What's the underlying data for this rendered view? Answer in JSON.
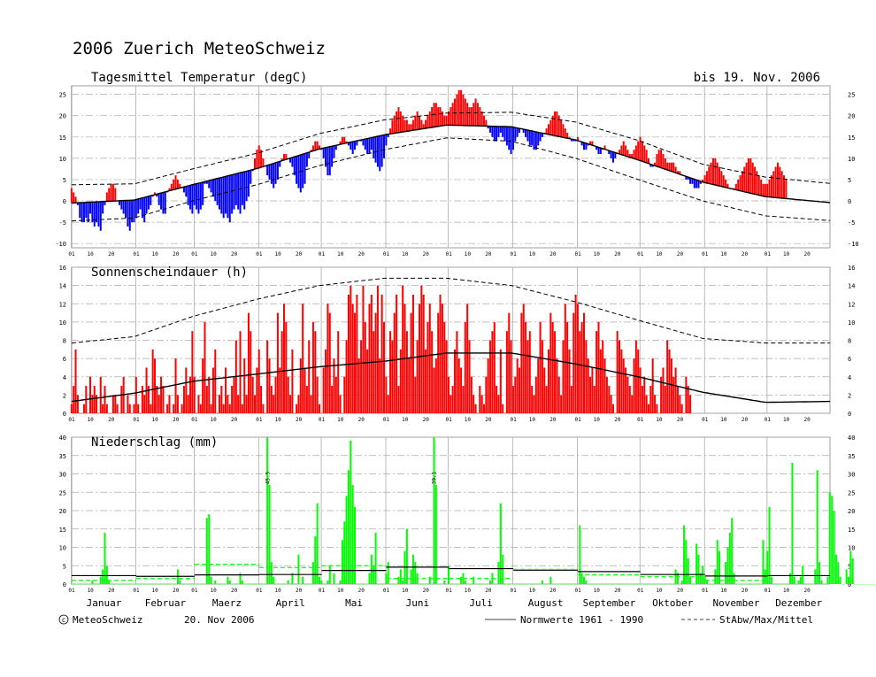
{
  "header": {
    "title": "2006  Zuerich MeteoSchweiz",
    "date_range": "bis 19. Nov. 2006"
  },
  "footer": {
    "copyright_symbol": "c",
    "copyright": "MeteoSchweiz",
    "date": "20. Nov 2006",
    "legend_normal": "Normwerte 1961 - 1990",
    "legend_dashed": "StAbw/Max/Mittel"
  },
  "month_labels": [
    "Januar",
    "Februar",
    "Maerz",
    "April",
    "Mai",
    "Juni",
    "Juli",
    "August",
    "September",
    "Oktober",
    "November",
    "Dezember"
  ],
  "day_tick_labels": [
    "01",
    "10",
    "20"
  ],
  "colors": {
    "above_normal": "#ff0000",
    "below_normal": "#0000ff",
    "sunshine": "#ff0000",
    "precip": "#00ff00",
    "grid": "#aaaaaa",
    "normal_line": "#000000"
  },
  "chart_data": [
    {
      "type": "bar",
      "title": "Tagesmittel Temperatur (degC)",
      "ylim": [
        -11,
        27
      ],
      "yticks": [
        -10,
        -5,
        0,
        5,
        10,
        15,
        20,
        25
      ],
      "x_unit": "day of year",
      "normal_mean": {
        "x": [
          1,
          31,
          59,
          90,
          120,
          151,
          181,
          212,
          243,
          273,
          304,
          334,
          365
        ],
        "y": [
          -0.5,
          0.2,
          3.8,
          7.6,
          12.2,
          15.5,
          17.8,
          17.4,
          14.3,
          9.6,
          4.4,
          1.0,
          -0.4
        ]
      },
      "upper_band": {
        "x": [
          1,
          31,
          59,
          90,
          120,
          151,
          181,
          212,
          243,
          273,
          304,
          334,
          365
        ],
        "y": [
          3.8,
          4.0,
          7.5,
          11.2,
          15.8,
          19.0,
          20.6,
          20.8,
          18.5,
          14.2,
          8.6,
          5.6,
          4.1
        ]
      },
      "lower_band": {
        "x": [
          1,
          31,
          59,
          90,
          120,
          151,
          181,
          212,
          243,
          273,
          304,
          334,
          365
        ],
        "y": [
          -4.7,
          -4.0,
          0.0,
          3.8,
          8.3,
          12.0,
          14.8,
          14.0,
          10.0,
          5.0,
          0.0,
          -3.5,
          -4.6
        ]
      },
      "daily_values": [
        3,
        2,
        1,
        -1,
        -4,
        -5,
        -5,
        -4,
        -5,
        -3,
        -5,
        -6,
        -5,
        -6,
        -7,
        -3,
        -1,
        2,
        3,
        4,
        4,
        3,
        0,
        -1,
        -2,
        -3,
        -4,
        -6,
        -7,
        -5,
        -5,
        -4,
        -3,
        -2,
        -4,
        -5,
        -3,
        -2,
        -1,
        1,
        2,
        1,
        -1,
        -2,
        -3,
        -3,
        2,
        3,
        4,
        5,
        6,
        5,
        4,
        3,
        2,
        1,
        -1,
        -2,
        -3,
        -1,
        -2,
        -3,
        -2,
        -1,
        4,
        4,
        3,
        2,
        1,
        0,
        -1,
        -2,
        -3,
        -4,
        -3,
        -4,
        -5,
        -3,
        -2,
        -1,
        -2,
        -3,
        -1,
        -2,
        0,
        1,
        4,
        7,
        10,
        12,
        13,
        12,
        10,
        8,
        6,
        5,
        4,
        3,
        4,
        5,
        8,
        10,
        11,
        11,
        10,
        9,
        8,
        6,
        4,
        3,
        2,
        3,
        4,
        8,
        10,
        12,
        13,
        14,
        14,
        13,
        12,
        10,
        8,
        6,
        6,
        8,
        10,
        12,
        13,
        14,
        15,
        15,
        14,
        13,
        12,
        11,
        12,
        13,
        14,
        14,
        13,
        12,
        11,
        11,
        12,
        10,
        9,
        8,
        7,
        8,
        10,
        13,
        15,
        17,
        19,
        20,
        21,
        22,
        21,
        20,
        19,
        19,
        18,
        18,
        19,
        20,
        21,
        20,
        19,
        18,
        19,
        20,
        21,
        22,
        23,
        23,
        22,
        22,
        21,
        20,
        20,
        21,
        22,
        23,
        24,
        25,
        26,
        26,
        25,
        24,
        23,
        22,
        22,
        23,
        24,
        23,
        22,
        21,
        20,
        19,
        17,
        16,
        15,
        14,
        14,
        15,
        16,
        15,
        14,
        13,
        12,
        11,
        12,
        14,
        15,
        16,
        17,
        16,
        15,
        14,
        13,
        13,
        12,
        12,
        13,
        14,
        15,
        16,
        17,
        18,
        19,
        20,
        21,
        21,
        20,
        19,
        18,
        17,
        16,
        15,
        14,
        14,
        14,
        15,
        14,
        13,
        12,
        12,
        13,
        14,
        14,
        13,
        12,
        11,
        11,
        12,
        13,
        12,
        11,
        10,
        9,
        10,
        11,
        12,
        13,
        14,
        13,
        12,
        11,
        11,
        12,
        13,
        14,
        15,
        14,
        13,
        12,
        10,
        8,
        8,
        9,
        11,
        12,
        12,
        11,
        10,
        9,
        9,
        9,
        9,
        8,
        7,
        7,
        6,
        6,
        5,
        5,
        4,
        4,
        3,
        3,
        3,
        4,
        5,
        6,
        7,
        8,
        9,
        10,
        10,
        9,
        8,
        7,
        6,
        5,
        4,
        3,
        3,
        3,
        4,
        5,
        6,
        7,
        8,
        9,
        10,
        10,
        9,
        8,
        7,
        6,
        5,
        4,
        4,
        4,
        5,
        6,
        7,
        8,
        9,
        8,
        7,
        6,
        5
      ]
    },
    {
      "type": "bar",
      "title": "Sonnenscheindauer (h)",
      "ylim": [
        0,
        16
      ],
      "yticks": [
        0,
        2,
        4,
        6,
        8,
        10,
        12,
        14,
        16
      ],
      "x_unit": "day of year",
      "normal_mean": {
        "x": [
          1,
          31,
          59,
          90,
          120,
          151,
          181,
          212,
          243,
          273,
          304,
          334,
          365
        ],
        "y": [
          1.3,
          2.2,
          3.5,
          4.3,
          5.1,
          5.7,
          6.6,
          6.6,
          5.4,
          4.0,
          2.3,
          1.2,
          1.3
        ]
      },
      "max_line": {
        "x": [
          1,
          31,
          59,
          90,
          120,
          151,
          181,
          212,
          243,
          273,
          304,
          334,
          365
        ],
        "y": [
          7.7,
          8.4,
          10.6,
          12.5,
          14.0,
          14.8,
          14.8,
          14.0,
          12.2,
          10.2,
          8.2,
          7.7,
          7.7
        ]
      },
      "daily_values": [
        1,
        3,
        7,
        2,
        0,
        0,
        1,
        3,
        0,
        4,
        2,
        3,
        2,
        0,
        4,
        1,
        3,
        1,
        0,
        0,
        2,
        2,
        1,
        0,
        3,
        4,
        0,
        2,
        1,
        0,
        1,
        4,
        1,
        0,
        3,
        2,
        5,
        3,
        1,
        7,
        6,
        3,
        2,
        4,
        3,
        0,
        1,
        2,
        0,
        1,
        6,
        2,
        0,
        1,
        3,
        5,
        2,
        4,
        9,
        4,
        0,
        2,
        1,
        6,
        10,
        3,
        4,
        1,
        5,
        7,
        0,
        2,
        3,
        1,
        5,
        2,
        1,
        3,
        4,
        8,
        2,
        9,
        1,
        6,
        2,
        11,
        9,
        4,
        2,
        5,
        7,
        3,
        1,
        0,
        8,
        6,
        3,
        2,
        4,
        11,
        5,
        9,
        12,
        10,
        4,
        2,
        7,
        0,
        1,
        2,
        6,
        12,
        5,
        3,
        8,
        2,
        10,
        9,
        4,
        1,
        0,
        5,
        7,
        12,
        11,
        3,
        6,
        4,
        9,
        2,
        0,
        4,
        8,
        13,
        14,
        12,
        11,
        13,
        6,
        8,
        14,
        10,
        7,
        12,
        13,
        9,
        11,
        14,
        6,
        13,
        10,
        4,
        2,
        9,
        8,
        11,
        13,
        3,
        7,
        14,
        12,
        9,
        6,
        11,
        13,
        4,
        8,
        12,
        14,
        13,
        7,
        10,
        12,
        9,
        5,
        6,
        11,
        13,
        12,
        10,
        8,
        4,
        2,
        3,
        7,
        9,
        6,
        5,
        3,
        10,
        12,
        8,
        4,
        2,
        1,
        0,
        3,
        2,
        1,
        4,
        6,
        8,
        9,
        10,
        3,
        2,
        7,
        1,
        0,
        9,
        11,
        8,
        3,
        4,
        6,
        5,
        11,
        12,
        10,
        8,
        9,
        3,
        2,
        4,
        6,
        10,
        8,
        5,
        3,
        7,
        11,
        10,
        9,
        6,
        4,
        2,
        8,
        12,
        10,
        7,
        3,
        11,
        13,
        12,
        9,
        10,
        11,
        8,
        6,
        4,
        5,
        3,
        9,
        10,
        7,
        8,
        6,
        4,
        3,
        2,
        1,
        0,
        9,
        8,
        7,
        6,
        5,
        4,
        3,
        2,
        6,
        8,
        7,
        5,
        3,
        4,
        2,
        1,
        3,
        6,
        2,
        1,
        0,
        4,
        5,
        3,
        8,
        7,
        6,
        4,
        5,
        3,
        2,
        1,
        0,
        4,
        3,
        2
      ]
    },
    {
      "type": "bar",
      "title": "Niederschlag (mm)",
      "ylim": [
        0,
        40
      ],
      "yticks": [
        0,
        5,
        10,
        15,
        20,
        25,
        30,
        35,
        40
      ],
      "x_unit": "day of year",
      "offscale_labels": [
        "45.5",
        "39.1",
        "42.3"
      ],
      "normal_month_mean": [
        2.3,
        2.1,
        2.5,
        2.6,
        3.7,
        4.6,
        4.2,
        3.8,
        3.4,
        2.6,
        2.2,
        2.3
      ],
      "month_mean_2006": [
        1.0,
        1.5,
        5.4,
        4.5,
        5.0,
        1.5,
        1.5,
        4.0,
        2.5,
        2.0,
        1.0,
        0
      ],
      "daily_values": [
        0,
        0,
        0,
        0,
        0,
        0,
        0,
        0,
        0,
        0,
        1,
        0,
        0,
        0,
        2,
        4,
        14,
        5,
        1,
        0,
        0,
        0,
        0,
        0,
        0,
        0,
        0,
        0,
        0,
        0,
        0,
        0,
        0,
        0,
        0,
        0,
        0,
        0,
        0,
        0,
        0,
        0,
        0,
        0,
        0,
        0,
        0,
        0,
        0,
        0,
        0,
        4,
        1,
        0,
        0,
        0,
        0,
        0,
        0,
        0,
        0,
        0,
        0,
        0,
        0,
        18,
        19,
        2,
        0,
        1,
        0,
        0,
        0,
        0,
        0,
        2,
        1,
        0,
        0,
        0,
        0,
        3,
        1,
        0,
        0,
        0,
        0,
        0,
        0,
        0,
        0,
        0,
        0,
        0,
        45.5,
        27,
        6,
        2,
        0,
        0,
        0,
        0,
        0,
        0,
        1,
        0,
        3,
        0,
        0,
        8,
        0,
        2,
        0,
        0,
        0,
        0,
        6,
        13,
        22,
        2,
        1,
        0,
        0,
        1,
        5,
        0,
        3,
        0,
        0,
        1,
        12,
        17,
        24,
        31,
        39.1,
        27,
        21,
        0,
        0,
        0,
        0,
        0,
        0,
        3,
        8,
        5,
        14,
        0,
        0,
        0,
        0,
        3,
        6,
        0,
        0,
        0,
        0,
        2,
        4,
        1,
        9,
        15,
        0,
        4,
        8,
        6,
        3,
        0,
        0,
        0,
        0,
        0,
        2,
        0,
        42.3,
        27,
        0,
        0,
        0,
        1,
        0,
        5,
        0,
        0,
        0,
        0,
        0,
        2,
        3,
        1,
        0,
        0,
        0,
        2,
        0,
        0,
        0,
        0,
        0,
        0,
        0,
        1,
        3,
        0,
        0,
        6,
        22,
        8,
        0,
        0,
        0,
        0,
        0,
        0,
        0,
        0,
        0,
        0,
        0,
        0,
        0,
        0,
        0,
        0,
        0,
        0,
        1,
        0,
        0,
        0,
        2,
        0,
        0,
        0,
        0,
        0,
        0,
        0,
        0,
        0,
        0,
        0,
        0,
        0,
        16,
        3,
        2,
        1,
        0,
        0,
        0,
        0,
        0,
        0,
        0,
        0,
        0,
        0,
        0,
        0,
        0,
        0,
        0,
        0,
        0,
        0,
        0,
        0,
        0,
        0,
        0,
        0,
        0,
        0,
        0,
        0,
        0,
        0,
        0,
        0,
        0,
        0,
        0,
        0,
        0,
        0,
        0,
        0,
        0,
        0,
        4,
        3,
        0,
        1,
        16,
        12,
        7,
        2,
        0,
        0,
        11,
        8,
        3,
        5,
        2,
        1,
        0,
        0,
        0,
        4,
        12,
        9,
        0,
        0,
        6,
        10,
        14,
        18,
        3,
        0,
        0,
        0,
        0,
        0,
        0,
        0,
        0,
        0,
        0,
        0,
        0,
        0,
        12,
        4,
        9,
        21,
        2,
        0,
        0,
        0,
        0,
        0,
        0,
        0,
        0,
        3,
        33,
        2,
        0,
        1,
        2,
        5,
        0,
        0,
        0,
        0,
        0,
        4,
        31,
        6,
        1,
        0,
        0,
        2,
        25,
        24,
        20,
        8,
        6,
        2,
        0,
        0,
        4,
        2,
        9,
        7,
        0,
        0,
        0,
        0,
        0,
        0,
        0,
        0,
        0,
        0,
        0,
        0,
        0,
        0,
        0,
        0,
        0,
        0,
        0,
        0,
        0,
        0,
        0,
        0,
        0,
        0,
        0,
        0,
        0,
        0,
        0,
        0,
        0,
        0,
        0,
        0,
        0,
        5,
        0,
        0,
        0,
        0,
        0,
        0,
        0,
        0,
        0,
        0,
        0,
        0,
        0,
        0,
        0,
        0,
        0,
        0,
        0,
        0,
        0,
        0,
        0,
        0,
        0,
        0,
        0,
        0,
        0,
        0,
        0,
        6,
        0,
        0,
        0,
        0,
        0,
        0,
        0,
        0,
        0,
        0,
        0,
        0,
        0,
        0,
        0,
        0,
        0,
        0,
        0,
        0,
        4,
        4,
        0,
        0,
        1,
        3,
        3,
        0,
        0,
        0,
        0,
        0,
        0,
        0
      ]
    }
  ]
}
